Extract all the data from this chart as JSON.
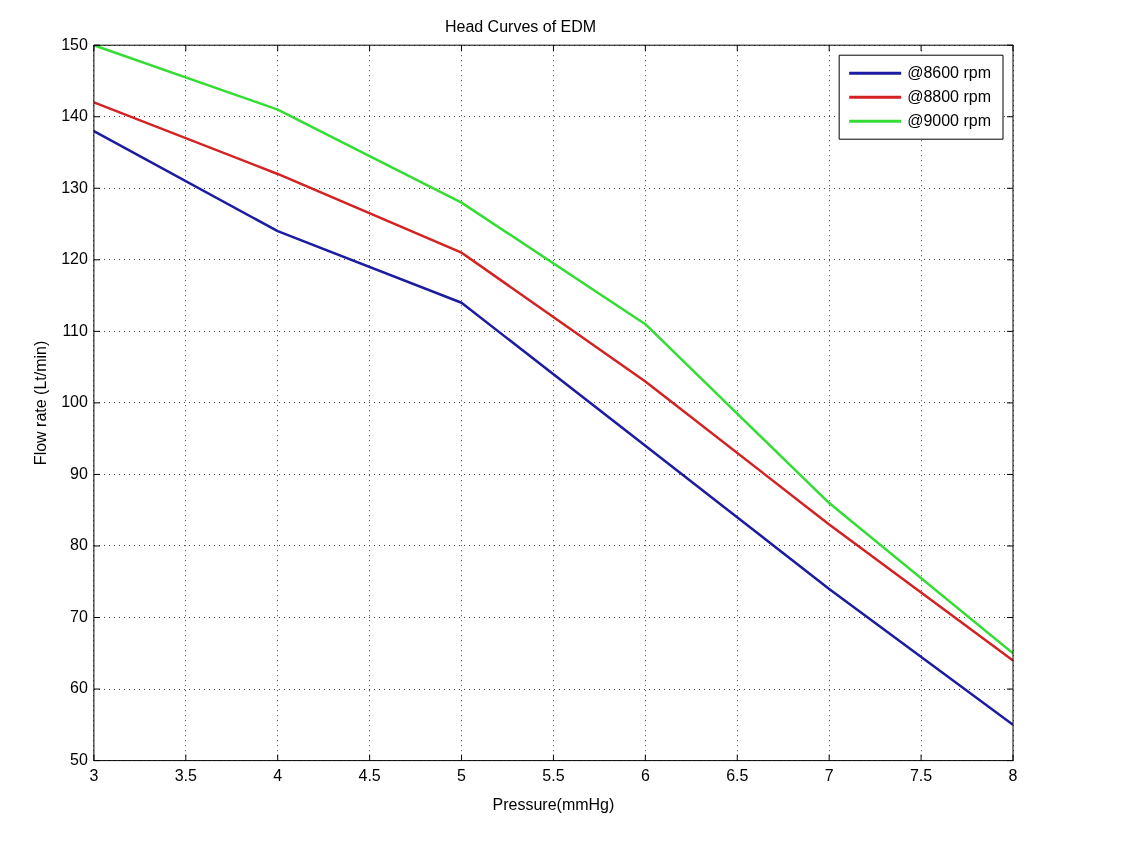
{
  "chart_data": {
    "type": "line",
    "title": "Head Curves of EDM",
    "xlabel": "Pressure(mmHg)",
    "ylabel": "Flow rate (Lt/min)",
    "x": [
      3,
      4,
      5,
      6,
      7,
      8
    ],
    "series": [
      {
        "name": "@8600 rpm",
        "color": "#1c1ca0",
        "values": [
          138,
          124,
          114,
          94,
          74,
          55
        ]
      },
      {
        "name": "@8800 rpm",
        "color": "#d42222",
        "values": [
          142,
          132,
          121,
          103,
          83,
          64
        ]
      },
      {
        "name": "@9000 rpm",
        "color": "#33dd33",
        "values": [
          150,
          141,
          128,
          111,
          86,
          65
        ]
      }
    ],
    "xlim": [
      3,
      8
    ],
    "xticks": [
      3,
      3.5,
      4,
      4.5,
      5,
      5.5,
      6,
      6.5,
      7,
      7.5,
      8
    ],
    "ylim": [
      50,
      150
    ],
    "yticks": [
      50,
      60,
      70,
      80,
      90,
      100,
      110,
      120,
      130,
      140,
      150
    ],
    "grid": true,
    "legend": "top right",
    "line_style": "solid",
    "marker": "none"
  }
}
